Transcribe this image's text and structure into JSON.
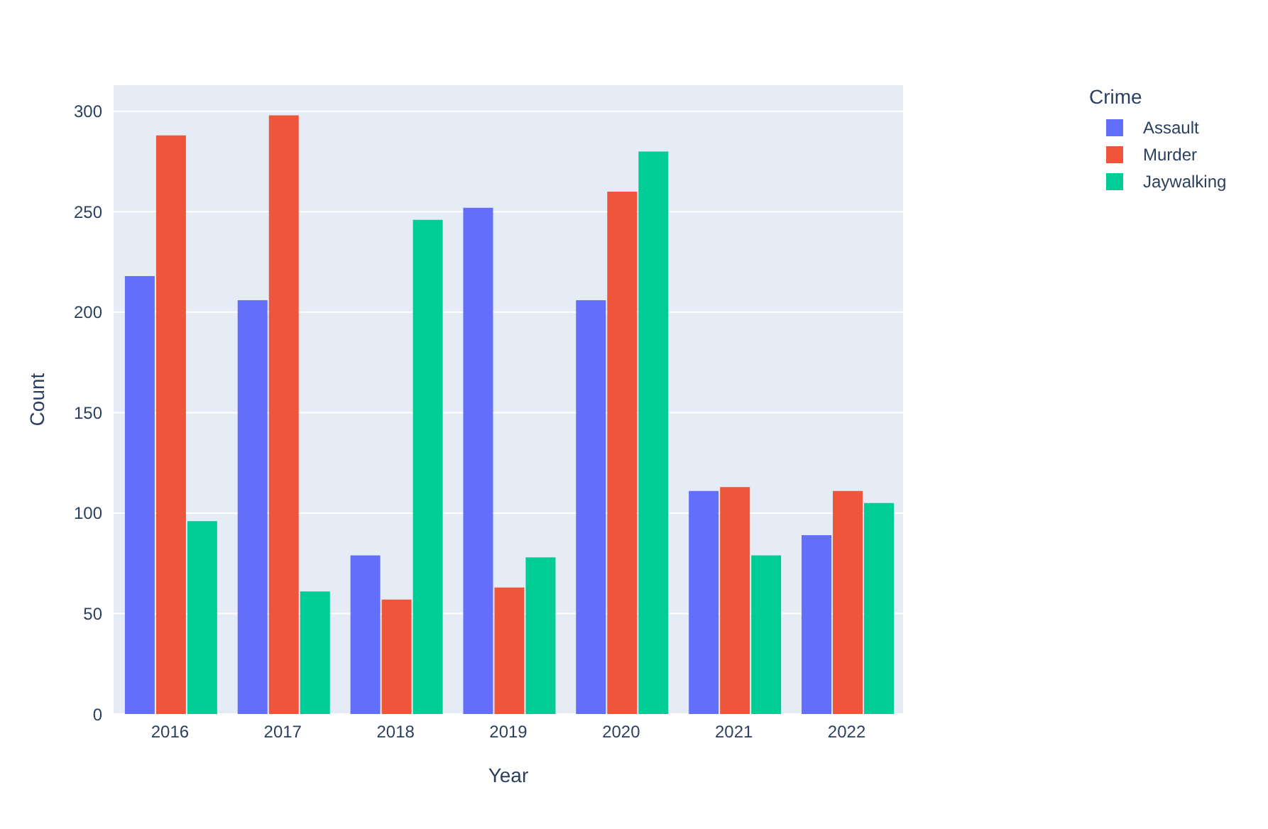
{
  "chart_data": {
    "type": "bar",
    "xlabel": "Year",
    "ylabel": "Count",
    "legend_title": "Crime",
    "legend": "top right",
    "grid": "y",
    "categories": [
      "2016",
      "2017",
      "2018",
      "2019",
      "2020",
      "2021",
      "2022"
    ],
    "series": [
      {
        "name": "Assault",
        "color": "#636efa",
        "values": [
          218,
          206,
          79,
          252,
          206,
          111,
          89
        ]
      },
      {
        "name": "Murder",
        "color": "#ef553b",
        "values": [
          288,
          298,
          57,
          63,
          260,
          113,
          111
        ]
      },
      {
        "name": "Jaywalking",
        "color": "#00cc96",
        "values": [
          96,
          61,
          246,
          78,
          280,
          79,
          105
        ]
      }
    ],
    "ylim": [
      0,
      313
    ],
    "yticks": [
      0,
      50,
      100,
      150,
      200,
      250,
      300
    ]
  }
}
